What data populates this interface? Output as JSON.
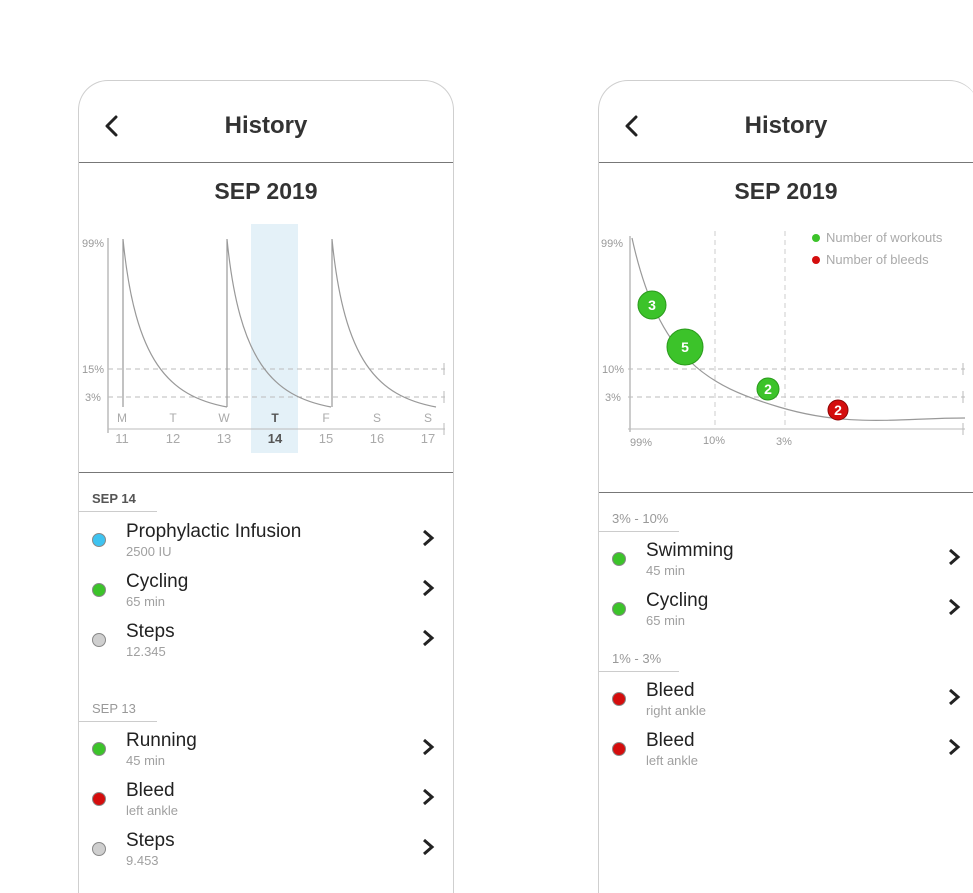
{
  "colors": {
    "blue": "#3ec3f0",
    "green": "#3cc32a",
    "red": "#d40d0d",
    "gray": "#cfcfcf",
    "highlight": "#d8ecf6"
  },
  "left": {
    "title": "History",
    "month": "SEP 2019",
    "chart": {
      "y_labels": [
        "99%",
        "15%",
        "3%"
      ],
      "days": [
        {
          "letter": "M",
          "num": "11"
        },
        {
          "letter": "T",
          "num": "12"
        },
        {
          "letter": "W",
          "num": "13"
        },
        {
          "letter": "T",
          "num": "14"
        },
        {
          "letter": "F",
          "num": "15"
        },
        {
          "letter": "S",
          "num": "16"
        },
        {
          "letter": "S",
          "num": "17"
        }
      ],
      "selected_day_index": 3
    },
    "sections": [
      {
        "label": "SEP 14",
        "items": [
          {
            "title": "Prophylactic Infusion",
            "sub": "2500 IU",
            "color": "blue"
          },
          {
            "title": "Cycling",
            "sub": "65 min",
            "color": "green"
          },
          {
            "title": "Steps",
            "sub": "12.345",
            "color": "gray"
          }
        ]
      },
      {
        "label": "SEP 13",
        "items": [
          {
            "title": "Running",
            "sub": "45 min",
            "color": "green"
          },
          {
            "title": "Bleed",
            "sub": "left ankle",
            "color": "red"
          },
          {
            "title": "Steps",
            "sub": "9.453",
            "color": "gray"
          }
        ]
      }
    ]
  },
  "right": {
    "title": "History",
    "month": "SEP 2019",
    "chart": {
      "y_labels": [
        "99%",
        "10%",
        "3%"
      ],
      "x_labels": [
        "99%",
        "10%",
        "3%"
      ],
      "legend": [
        {
          "label": "Number of workouts",
          "color": "green"
        },
        {
          "label": "Number of bleeds",
          "color": "red"
        }
      ],
      "bubbles": [
        {
          "count": "3",
          "kind": "workouts"
        },
        {
          "count": "5",
          "kind": "workouts"
        },
        {
          "count": "2",
          "kind": "workouts"
        },
        {
          "count": "2",
          "kind": "bleeds"
        }
      ]
    },
    "sections": [
      {
        "label": "3% - 10%",
        "items": [
          {
            "title": "Swimming",
            "sub": "45 min",
            "color": "green"
          },
          {
            "title": "Cycling",
            "sub": "65 min",
            "color": "green"
          }
        ]
      },
      {
        "label": "1% - 3%",
        "items": [
          {
            "title": "Bleed",
            "sub": "right ankle",
            "color": "red"
          },
          {
            "title": "Bleed",
            "sub": "left ankle",
            "color": "red"
          }
        ]
      }
    ]
  }
}
